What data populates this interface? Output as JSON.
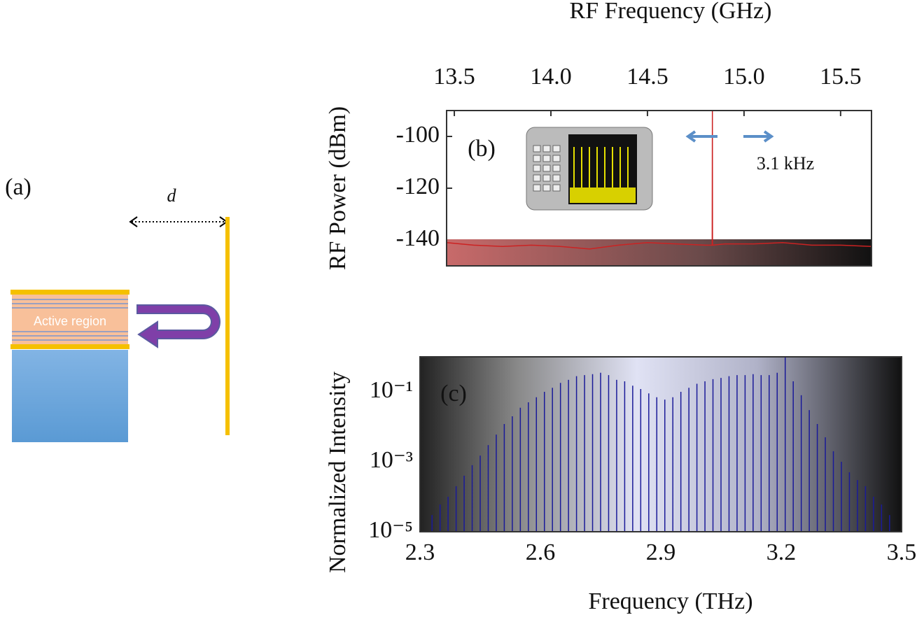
{
  "diagram": {
    "panel_label": "(a)",
    "distance_label": "d",
    "region_label": "Active region"
  },
  "chart_data": [
    {
      "type": "line",
      "panel_label": "(b)",
      "title": "RF Frequency (GHz)",
      "y_label": "RF Power (dBm)",
      "annotation": "3.1 kHz",
      "xlim": [
        13.46,
        15.66
      ],
      "xticks": [
        13.5,
        {
          "value": 14,
          "label": "14.0"
        },
        14.5,
        {
          "value": 15,
          "label": "15.0"
        },
        15.5
      ],
      "ylim": [
        -150,
        -90
      ],
      "yticks": [
        -100,
        -120,
        -140
      ],
      "x_axis_position": "top",
      "series": [
        {
          "color": "#cc2222",
          "x": [
            13.46,
            13.6,
            13.75,
            13.9,
            14.05,
            14.2,
            14.35,
            14.5,
            14.65,
            14.8,
            14.835,
            14.836,
            14.837,
            14.9,
            15.05,
            15.2,
            15.35,
            15.5,
            15.66
          ],
          "values": [
            -141,
            -142,
            -142.5,
            -142,
            -142.5,
            -143.5,
            -142,
            -141,
            -141.5,
            -142,
            -142,
            -90,
            -142,
            -141.5,
            -141.5,
            -141,
            -142,
            -142,
            -142.5
          ]
        }
      ]
    },
    {
      "type": "stem",
      "panel_label": "(c)",
      "x_label": "Frequency (THz)",
      "y_label": "Normalized Intensity",
      "log_y": true,
      "xlim": [
        2.3,
        3.5
      ],
      "xticks": [
        2.3,
        2.6,
        2.9,
        3.2,
        3.5
      ],
      "ylim": [
        1e-05,
        1
      ],
      "yticks": [
        {
          "value": 0.1,
          "label": "10⁻¹"
        },
        {
          "value": 0.001,
          "label": "10⁻³"
        },
        {
          "value": 1e-05,
          "label": "10⁻⁵"
        }
      ],
      "series": [
        {
          "color": "#1a1a99",
          "x": [
            2.33,
            2.35,
            2.37,
            2.39,
            2.41,
            2.43,
            2.45,
            2.47,
            2.49,
            2.51,
            2.53,
            2.55,
            2.57,
            2.59,
            2.61,
            2.63,
            2.65,
            2.67,
            2.69,
            2.71,
            2.73,
            2.75,
            2.77,
            2.79,
            2.81,
            2.83,
            2.85,
            2.87,
            2.89,
            2.91,
            2.93,
            2.95,
            2.97,
            2.99,
            3.01,
            3.03,
            3.05,
            3.07,
            3.09,
            3.11,
            3.13,
            3.15,
            3.17,
            3.19,
            3.21,
            3.23,
            3.25,
            3.27,
            3.29,
            3.31,
            3.33,
            3.35,
            3.37,
            3.39,
            3.41,
            3.43,
            3.45,
            3.47
          ],
          "values": [
            3e-05,
            6e-05,
            0.0001,
            0.0002,
            0.0004,
            0.0008,
            0.0015,
            0.003,
            0.006,
            0.012,
            0.02,
            0.035,
            0.05,
            0.07,
            0.1,
            0.13,
            0.18,
            0.22,
            0.28,
            0.3,
            0.32,
            0.35,
            0.3,
            0.22,
            0.2,
            0.15,
            0.12,
            0.09,
            0.07,
            0.06,
            0.07,
            0.1,
            0.13,
            0.17,
            0.2,
            0.23,
            0.25,
            0.28,
            0.3,
            0.3,
            0.32,
            0.3,
            0.3,
            0.35,
            1,
            0.2,
            0.08,
            0.03,
            0.012,
            0.005,
            0.002,
            0.001,
            0.0005,
            0.0003,
            0.0002,
            0.0001,
            6e-05,
            3e-05
          ]
        }
      ]
    }
  ]
}
